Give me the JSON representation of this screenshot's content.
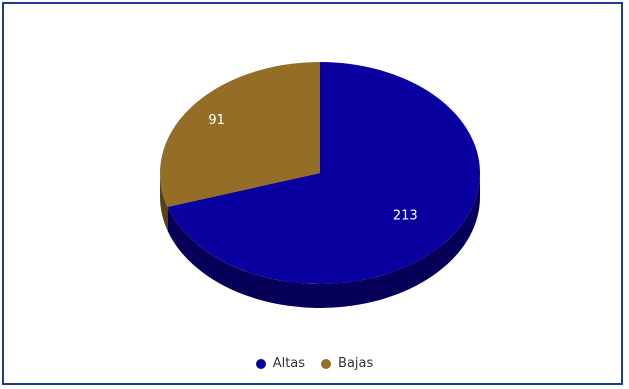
{
  "chart_data": {
    "type": "pie",
    "title": "",
    "categories": [
      "Altas",
      "Bajas"
    ],
    "values": [
      213,
      91
    ],
    "colors": [
      "#0a00a0",
      "#946e27"
    ],
    "legend_position": "bottom",
    "three_d": true
  },
  "legend": {
    "items": [
      {
        "label": "Altas",
        "color": "#0a00a0"
      },
      {
        "label": "Bajas",
        "color": "#946e27"
      }
    ]
  },
  "labels": {
    "altas_value": "213",
    "bajas_value": "91"
  }
}
